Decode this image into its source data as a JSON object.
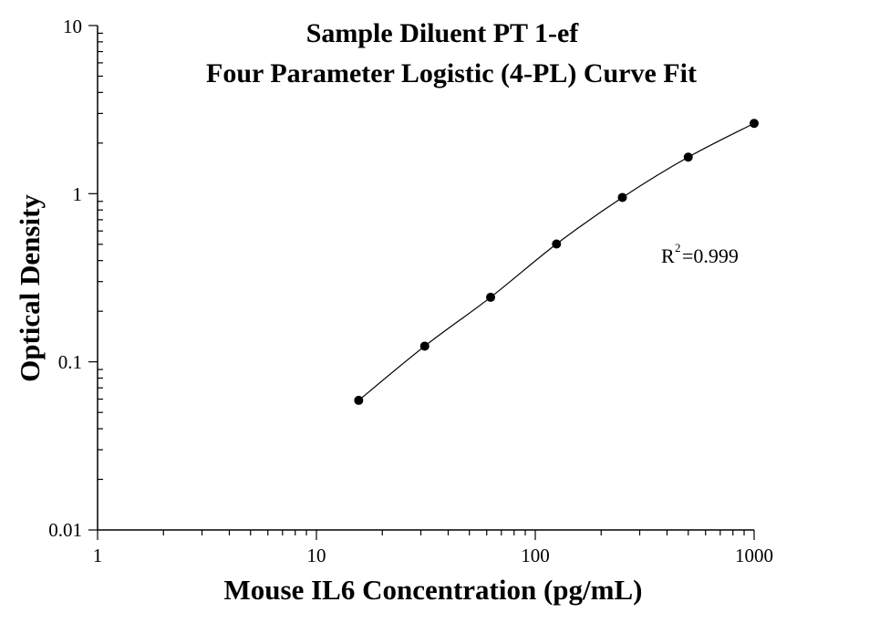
{
  "chart_data": {
    "type": "scatter",
    "title": "Sample Diluent PT 1-ef",
    "subtitle": "Four Parameter Logistic (4-PL) Curve Fit",
    "xlabel": "Mouse IL6 Concentration (pg/mL)",
    "ylabel": "Optical Density",
    "xscale": "log",
    "yscale": "log",
    "xlim": [
      1,
      1000
    ],
    "ylim": [
      0.01,
      10
    ],
    "x_ticks": [
      "1",
      "10",
      "100",
      "1000"
    ],
    "y_ticks": [
      "0.01",
      "0.1",
      "1",
      "10"
    ],
    "grid": false,
    "legend": "none",
    "annotation": {
      "base": "R",
      "superscript": "2",
      "value": "=0.999"
    },
    "series": [
      {
        "x": [
          15.6,
          31.25,
          62.5,
          125,
          250,
          500,
          1000
        ],
        "y": [
          0.059,
          0.124,
          0.242,
          0.502,
          0.95,
          1.65,
          2.62
        ],
        "fit": "4-PL"
      }
    ],
    "colors": {
      "marker": "#000000",
      "line": "#000000",
      "axis": "#000000"
    }
  }
}
